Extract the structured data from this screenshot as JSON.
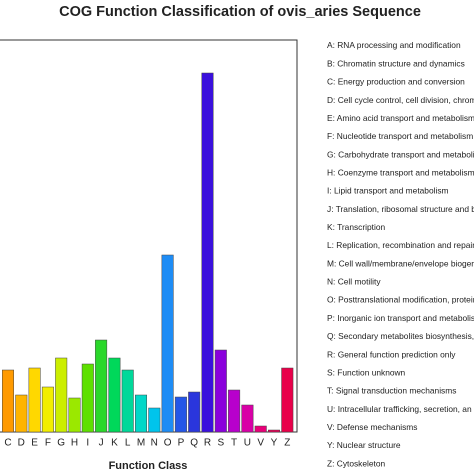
{
  "chart_data": {
    "type": "bar",
    "title": "COG Function Classification of ovis_aries Sequence",
    "x_label": "Function Class",
    "categories": [
      "C",
      "D",
      "E",
      "F",
      "G",
      "H",
      "I",
      "J",
      "K",
      "L",
      "M",
      "N",
      "O",
      "P",
      "Q",
      "R",
      "S",
      "T",
      "U",
      "V",
      "Y",
      "Z"
    ],
    "values": [
      62,
      37,
      64,
      45,
      74,
      34,
      68,
      92,
      74,
      62,
      37,
      24,
      177,
      35,
      40,
      359,
      82,
      42,
      27,
      6,
      2,
      64
    ],
    "colors": [
      "#ff9a00",
      "#ffb400",
      "#ffd800",
      "#f2ee00",
      "#ccee00",
      "#9be800",
      "#5ee000",
      "#2ad82a",
      "#00d85a",
      "#00d89a",
      "#00d8c8",
      "#00c4ec",
      "#1e8cf5",
      "#2456e8",
      "#2a36dc",
      "#3a10dc",
      "#8a00dc",
      "#b800cc",
      "#d800a6",
      "#e80078",
      "#ea0058",
      "#e8004a"
    ],
    "ylim": [
      0,
      392
    ],
    "legend": [
      "A: RNA processing and modification",
      "B: Chromatin structure and dynamics",
      "C: Energy production and conversion",
      "D: Cell cycle control, cell division, chromo",
      "E: Amino acid transport and metabolism",
      "F: Nucleotide transport and metabolism",
      "G: Carbohydrate transport and metabolis",
      "H: Coenzyme transport and metabolism",
      "I: Lipid transport and metabolism",
      "J: Translation, ribosomal structure and bi",
      "K: Transcription",
      "L: Replication, recombination and repair",
      "M: Cell wall/membrane/envelope biogene",
      "N: Cell motility",
      "O: Posttranslational modification, proteir",
      "P: Inorganic ion transport and metabolis",
      "Q: Secondary metabolites biosynthesis, t",
      "R: General function prediction only",
      "S: Function unknown",
      "T: Signal transduction mechanisms",
      "U: Intracellular trafficking, secretion, an",
      "V: Defense mechanisms",
      "Y: Nuclear structure",
      "Z: Cytoskeleton"
    ]
  }
}
